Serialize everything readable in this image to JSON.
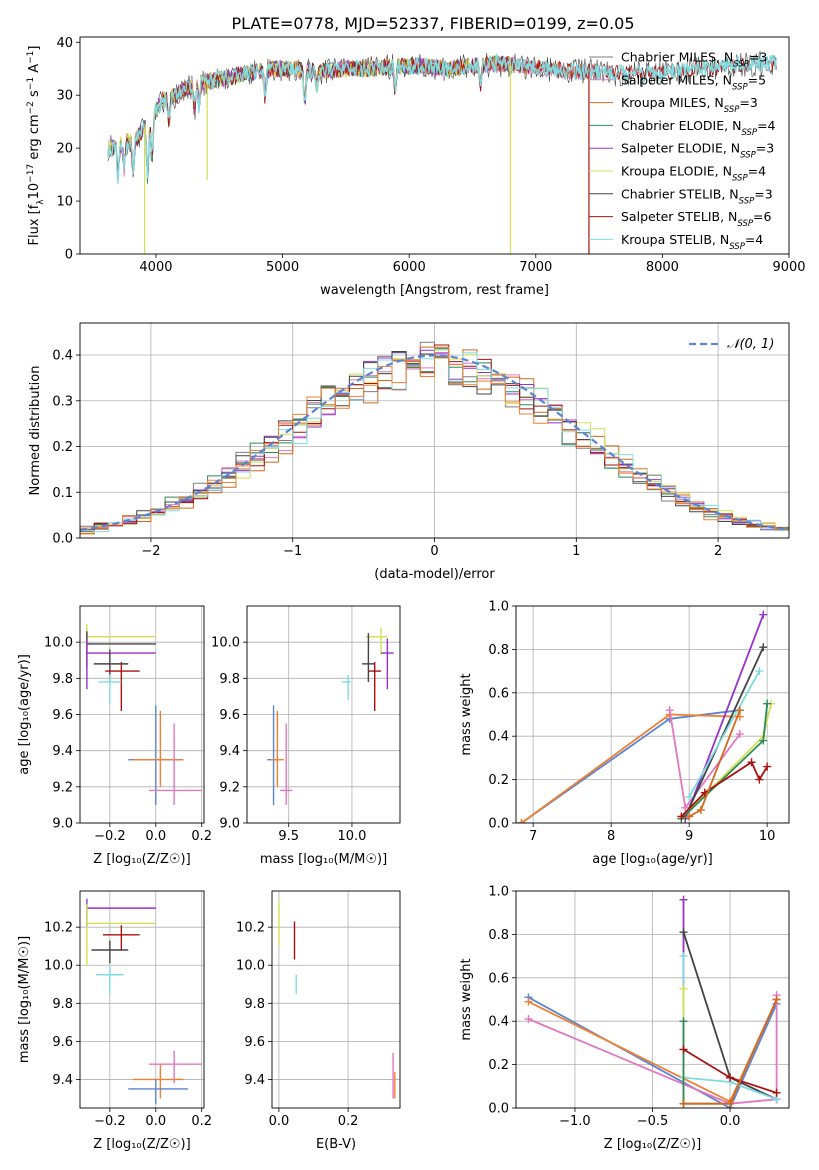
{
  "figure": {
    "title": "PLATE=0778, MJD=52337, FIBERID=0199, z=0.05"
  },
  "colors": {
    "chabrier_miles": "#7f7f7f",
    "salpeter_miles": "#e377c2",
    "kroupa_miles": "#d2691e",
    "chabrier_elodie": "#2e8b57",
    "salpeter_elodie": "#9932cc",
    "kroupa_elodie": "#d4e157",
    "chabrier_stelib": "#444444",
    "salpeter_stelib": "#aa1111",
    "kroupa_stelib": "#7fdbe0",
    "normal": "#5b84d4",
    "blue": "#5b84d4",
    "orange": "#f08030",
    "pink": "#e377c2"
  },
  "chart_data": [
    {
      "id": "spectrum",
      "type": "line",
      "xlabel": "wavelength [Angstrom, rest frame]",
      "ylabel": "Flux [f_λ 10^-17 erg cm^-2 s^-1 A^-1]",
      "xlim": [
        3400,
        9000
      ],
      "ylim": [
        0,
        41
      ],
      "xticks": [
        4000,
        5000,
        6000,
        7000,
        8000,
        9000
      ],
      "yticks": [
        0,
        10,
        20,
        30,
        40
      ],
      "grid": false,
      "legend": "top-right",
      "continuum": {
        "x": [
          3650,
          3750,
          3850,
          3950,
          4050,
          4150,
          4300,
          4500,
          4700,
          4900,
          5100,
          5300,
          5500,
          5700,
          5900,
          6100,
          6300,
          6500,
          6700,
          6900,
          7100,
          7300,
          7500,
          7700,
          7900,
          8100,
          8300,
          8500,
          8700,
          8900
        ],
        "y": [
          20,
          21,
          22,
          25,
          29,
          30,
          32,
          33,
          34,
          35,
          35,
          34.5,
          35,
          35,
          35.5,
          35.5,
          35,
          35.5,
          36,
          35.5,
          35,
          34.5,
          34.5,
          34,
          34,
          34.5,
          35,
          35.5,
          36,
          36
        ]
      },
      "series": [
        {
          "name": "Chabrier MILES, N_SSP=3",
          "color_key": "chabrier_miles",
          "xrange": [
            3620,
            7420
          ]
        },
        {
          "name": "Salpeter MILES, N_SSP=5",
          "color_key": "salpeter_miles",
          "xrange": [
            3620,
            7420
          ]
        },
        {
          "name": "Kroupa MILES, N_SSP=3",
          "color_key": "kroupa_miles",
          "xrange": [
            3620,
            7420
          ]
        },
        {
          "name": "Chabrier ELODIE, N_SSP=4",
          "color_key": "chabrier_elodie",
          "xrange": [
            3620,
            6800
          ]
        },
        {
          "name": "Salpeter ELODIE, N_SSP=3",
          "color_key": "salpeter_elodie",
          "xrange": [
            3620,
            6800
          ]
        },
        {
          "name": "Kroupa ELODIE, N_SSP=4",
          "color_key": "kroupa_elodie",
          "xrange": [
            3620,
            6800
          ]
        },
        {
          "name": "Chabrier STELIB, N_SSP=3",
          "color_key": "chabrier_stelib",
          "xrange": [
            3620,
            8900
          ]
        },
        {
          "name": "Salpeter STELIB, N_SSP=6",
          "color_key": "salpeter_stelib",
          "xrange": [
            3620,
            8900
          ]
        },
        {
          "name": "Kroupa STELIB, N_SSP=4",
          "color_key": "kroupa_stelib",
          "xrange": [
            3620,
            8900
          ]
        }
      ]
    },
    {
      "id": "residuals",
      "type": "line",
      "xlabel": "(data-model)/error",
      "ylabel": "Normed distribution",
      "xlim": [
        -2.5,
        2.5
      ],
      "ylim": [
        0,
        0.47
      ],
      "xticks": [
        -2,
        -1,
        0,
        1,
        2
      ],
      "yticks": [
        0.0,
        0.1,
        0.2,
        0.3,
        0.4
      ],
      "grid": true,
      "legend": "top-right",
      "legend_label": "𝒩(0, 1)",
      "bin_width": 0.1,
      "curve": "gaussian, mean 0, sigma 1"
    },
    {
      "id": "age-vs-Z",
      "type": "scatter",
      "xlabel": "Z [log₁₀(Z/Z☉)]",
      "ylabel": "age  [log₁₀(age/yr)]",
      "xlim": [
        -0.33,
        0.21
      ],
      "ylim": [
        9.0,
        10.2
      ],
      "xticks": [
        -0.2,
        0.0,
        0.2
      ],
      "yticks": [
        9.0,
        9.2,
        9.4,
        9.6,
        9.8,
        10.0
      ],
      "grid": true,
      "points": [
        {
          "x": -0.3,
          "y": 10.05,
          "xerr": [
            0,
            0
          ],
          "yerr": [
            0.08,
            0.05
          ],
          "color_key": "kroupa_elodie"
        },
        {
          "x": -0.3,
          "y": 10.03,
          "xerr": [
            0,
            0.3
          ],
          "yerr": [
            0.08,
            0.05
          ],
          "color_key": "kroupa_elodie"
        },
        {
          "x": -0.3,
          "y": 9.99,
          "xerr": [
            0,
            0.3
          ],
          "yerr": [
            0.13,
            0.07
          ],
          "color_key": "chabrier_stelib"
        },
        {
          "x": -0.3,
          "y": 9.94,
          "xerr": [
            0,
            0.3
          ],
          "yerr": [
            0.2,
            0.08
          ],
          "color_key": "salpeter_elodie"
        },
        {
          "x": -0.2,
          "y": 9.88,
          "xerr": [
            0.07,
            0.08
          ],
          "yerr": [
            0.1,
            0.08
          ],
          "color_key": "chabrier_stelib"
        },
        {
          "x": -0.15,
          "y": 9.84,
          "xerr": [
            0.07,
            0.08
          ],
          "yerr": [
            0.22,
            0.05
          ],
          "color_key": "salpeter_stelib"
        },
        {
          "x": -0.2,
          "y": 9.78,
          "xerr": [
            0.05,
            0.05
          ],
          "yerr": [
            0.12,
            0.04
          ],
          "color_key": "kroupa_stelib"
        },
        {
          "x": 0.0,
          "y": 9.35,
          "xerr": [
            0.12,
            0.12
          ],
          "yerr": [
            0.25,
            0.3
          ],
          "color_key": "blue"
        },
        {
          "x": 0.02,
          "y": 9.35,
          "xerr": [
            0.12,
            0.1
          ],
          "yerr": [
            0.15,
            0.27
          ],
          "color_key": "orange"
        },
        {
          "x": 0.08,
          "y": 9.18,
          "xerr": [
            0.11,
            0.12
          ],
          "yerr": [
            0.08,
            0.37
          ],
          "color_key": "pink"
        }
      ]
    },
    {
      "id": "age-vs-mass",
      "type": "scatter",
      "xlabel": "mass [log₁₀(M/M☉)]",
      "ylabel": "",
      "xlim": [
        9.17,
        10.38
      ],
      "ylim": [
        9.0,
        10.2
      ],
      "xticks": [
        9.5,
        10.0
      ],
      "yticks": [
        9.0,
        9.2,
        9.4,
        9.6,
        9.8,
        10.0
      ],
      "grid": true,
      "points": [
        {
          "x": 10.23,
          "y": 10.03,
          "xerr": [
            0.12,
            0.05
          ],
          "yerr": [
            0.1,
            0.05
          ],
          "color_key": "kroupa_elodie"
        },
        {
          "x": 10.28,
          "y": 9.94,
          "xerr": [
            0.05,
            0.05
          ],
          "yerr": [
            0.2,
            0.08
          ],
          "color_key": "salpeter_elodie"
        },
        {
          "x": 10.13,
          "y": 9.88,
          "xerr": [
            0.05,
            0.05
          ],
          "yerr": [
            0.1,
            0.17
          ],
          "color_key": "chabrier_stelib"
        },
        {
          "x": 10.18,
          "y": 9.84,
          "xerr": [
            0.05,
            0.05
          ],
          "yerr": [
            0.22,
            0.05
          ],
          "color_key": "salpeter_stelib"
        },
        {
          "x": 9.97,
          "y": 9.78,
          "xerr": [
            0.05,
            0.02
          ],
          "yerr": [
            0.1,
            0.04
          ],
          "color_key": "kroupa_stelib"
        },
        {
          "x": 9.38,
          "y": 9.35,
          "xerr": [
            0.05,
            0.05
          ],
          "yerr": [
            0.25,
            0.3
          ],
          "color_key": "blue"
        },
        {
          "x": 9.41,
          "y": 9.35,
          "xerr": [
            0.05,
            0.05
          ],
          "yerr": [
            0.15,
            0.27
          ],
          "color_key": "orange"
        },
        {
          "x": 9.48,
          "y": 9.18,
          "xerr": [
            0.05,
            0.05
          ],
          "yerr": [
            0.08,
            0.37
          ],
          "color_key": "pink"
        }
      ]
    },
    {
      "id": "weight-vs-age",
      "type": "line",
      "xlabel": "age  [log₁₀(age/yr)]",
      "ylabel": "mass weight",
      "xlim": [
        6.78,
        10.28
      ],
      "ylim": [
        0.0,
        1.0
      ],
      "xticks": [
        7,
        8,
        9,
        10
      ],
      "yticks": [
        0.0,
        0.2,
        0.4,
        0.6,
        0.8,
        1.0
      ],
      "grid": true,
      "series": [
        {
          "color_key": "blue",
          "x": [
            6.85,
            8.75,
            9.65
          ],
          "y": [
            0.0,
            0.48,
            0.52
          ]
        },
        {
          "color_key": "orange",
          "x": [
            6.85,
            8.75,
            9.65
          ],
          "y": [
            0.0,
            0.5,
            0.49
          ]
        },
        {
          "color_key": "pink",
          "x": [
            8.75,
            8.95,
            9.65
          ],
          "y": [
            0.52,
            0.07,
            0.41
          ]
        },
        {
          "color_key": "salpeter_elodie",
          "x": [
            8.95,
            9.95
          ],
          "y": [
            0.02,
            0.96
          ]
        },
        {
          "color_key": "chabrier_stelib",
          "x": [
            8.95,
            9.95
          ],
          "y": [
            0.03,
            0.81
          ]
        },
        {
          "color_key": "kroupa_stelib",
          "x": [
            9.0,
            9.9
          ],
          "y": [
            0.12,
            0.7
          ]
        },
        {
          "color_key": "kroupa_elodie",
          "x": [
            8.9,
            9.95,
            10.05
          ],
          "y": [
            0.02,
            0.4,
            0.55
          ]
        },
        {
          "color_key": "chabrier_elodie",
          "x": [
            8.9,
            9.95,
            10.0
          ],
          "y": [
            0.02,
            0.38,
            0.55
          ]
        },
        {
          "color_key": "salpeter_stelib",
          "x": [
            8.9,
            9.2,
            9.8,
            9.9,
            10.0
          ],
          "y": [
            0.03,
            0.14,
            0.28,
            0.2,
            0.26
          ]
        },
        {
          "color_key": "kroupa_miles",
          "x": [
            9.0,
            9.15,
            9.65
          ],
          "y": [
            0.03,
            0.06,
            0.52
          ]
        }
      ]
    },
    {
      "id": "mass-vs-Z",
      "type": "scatter",
      "xlabel": "Z [log₁₀(Z/Z☉)]",
      "ylabel": "mass [log₁₀(M/M☉)]",
      "xlim": [
        -0.33,
        0.21
      ],
      "ylim": [
        9.25,
        10.39
      ],
      "xticks": [
        -0.2,
        0.0,
        0.2
      ],
      "yticks": [
        9.4,
        9.6,
        9.8,
        10.0,
        10.2
      ],
      "grid": true,
      "points": [
        {
          "x": -0.3,
          "y": 10.3,
          "xerr": [
            0,
            0.3
          ],
          "yerr": [
            0.1,
            0.05
          ],
          "color_key": "salpeter_elodie"
        },
        {
          "x": -0.3,
          "y": 10.22,
          "xerr": [
            0,
            0.3
          ],
          "yerr": [
            0.22,
            0.1
          ],
          "color_key": "kroupa_elodie"
        },
        {
          "x": -0.15,
          "y": 10.16,
          "xerr": [
            0.08,
            0.08
          ],
          "yerr": [
            0.08,
            0.05
          ],
          "color_key": "salpeter_stelib"
        },
        {
          "x": -0.2,
          "y": 10.08,
          "xerr": [
            0.08,
            0.08
          ],
          "yerr": [
            0.07,
            0.05
          ],
          "color_key": "chabrier_stelib"
        },
        {
          "x": -0.2,
          "y": 9.95,
          "xerr": [
            0.06,
            0.06
          ],
          "yerr": [
            0.1,
            0.05
          ],
          "color_key": "kroupa_stelib"
        },
        {
          "x": 0.08,
          "y": 9.48,
          "xerr": [
            0.11,
            0.12
          ],
          "yerr": [
            0.1,
            0.07
          ],
          "color_key": "pink"
        },
        {
          "x": 0.02,
          "y": 9.4,
          "xerr": [
            0.12,
            0.1
          ],
          "yerr": [
            0.1,
            0.08
          ],
          "color_key": "orange"
        },
        {
          "x": 0.0,
          "y": 9.35,
          "xerr": [
            0.12,
            0.14
          ],
          "yerr": [
            0.08,
            0.05
          ],
          "color_key": "blue"
        }
      ]
    },
    {
      "id": "mass-vs-EBV",
      "type": "scatter",
      "xlabel": "E(B-V)",
      "ylabel": "",
      "xlim": [
        -0.02,
        0.35
      ],
      "ylim": [
        9.25,
        10.39
      ],
      "xticks": [
        0.0,
        0.2
      ],
      "yticks": [
        9.4,
        9.6,
        9.8,
        10.0,
        10.2
      ],
      "grid": true,
      "points": [
        {
          "x": 0.0,
          "y": 10.22,
          "xerr": [
            0,
            0
          ],
          "yerr": [
            0.12,
            0.12
          ],
          "color_key": "kroupa_elodie"
        },
        {
          "x": 0.045,
          "y": 10.13,
          "xerr": [
            0,
            0
          ],
          "yerr": [
            0.1,
            0.1
          ],
          "color_key": "salpeter_stelib"
        },
        {
          "x": 0.05,
          "y": 9.9,
          "xerr": [
            0,
            0
          ],
          "yerr": [
            0.05,
            0.05
          ],
          "color_key": "kroupa_stelib"
        },
        {
          "x": 0.33,
          "y": 9.42,
          "xerr": [
            0,
            0
          ],
          "yerr": [
            0.12,
            0.12
          ],
          "color_key": "pink"
        },
        {
          "x": 0.335,
          "y": 9.37,
          "xerr": [
            0,
            0
          ],
          "yerr": [
            0.07,
            0.07
          ],
          "color_key": "orange"
        }
      ]
    },
    {
      "id": "weight-vs-Z",
      "type": "line",
      "xlabel": "Z [log₁₀(Z/Z☉)]",
      "ylabel": "mass weight",
      "xlim": [
        -1.38,
        0.38
      ],
      "ylim": [
        0.0,
        1.0
      ],
      "xticks": [
        -1.0,
        -0.5,
        0.0
      ],
      "yticks": [
        0.0,
        0.2,
        0.4,
        0.6,
        0.8,
        1.0
      ],
      "grid": true,
      "series": [
        {
          "color_key": "blue",
          "x": [
            -1.3,
            0.0,
            0.3
          ],
          "y": [
            0.51,
            0.0,
            0.48
          ]
        },
        {
          "color_key": "orange",
          "x": [
            -1.3,
            0.0,
            0.3
          ],
          "y": [
            0.49,
            0.03,
            0.5
          ]
        },
        {
          "color_key": "pink",
          "x": [
            -1.3,
            0.0,
            0.3,
            0.3
          ],
          "y": [
            0.41,
            0.02,
            0.04,
            0.52
          ]
        },
        {
          "color_key": "salpeter_elodie",
          "x": [
            -0.3,
            -0.3,
            0.0
          ],
          "y": [
            0.96,
            0.02,
            0.02
          ]
        },
        {
          "color_key": "chabrier_stelib",
          "x": [
            -0.3,
            0.0,
            0.3
          ],
          "y": [
            0.81,
            0.14,
            0.04
          ]
        },
        {
          "color_key": "kroupa_stelib",
          "x": [
            -0.3,
            -0.3,
            0.0,
            0.3
          ],
          "y": [
            0.7,
            0.14,
            0.12,
            0.04
          ]
        },
        {
          "color_key": "kroupa_elodie",
          "x": [
            -0.3,
            -0.3,
            0.0
          ],
          "y": [
            0.55,
            0.02,
            0.02
          ]
        },
        {
          "color_key": "chabrier_elodie",
          "x": [
            -0.3,
            -0.3
          ],
          "y": [
            0.4,
            0.02
          ]
        },
        {
          "color_key": "salpeter_stelib",
          "x": [
            -0.3,
            0.0,
            0.3
          ],
          "y": [
            0.27,
            0.14,
            0.07
          ]
        },
        {
          "color_key": "kroupa_miles",
          "x": [
            -0.3,
            0.0,
            0.3
          ],
          "y": [
            0.02,
            0.02,
            0.5
          ]
        }
      ]
    }
  ]
}
